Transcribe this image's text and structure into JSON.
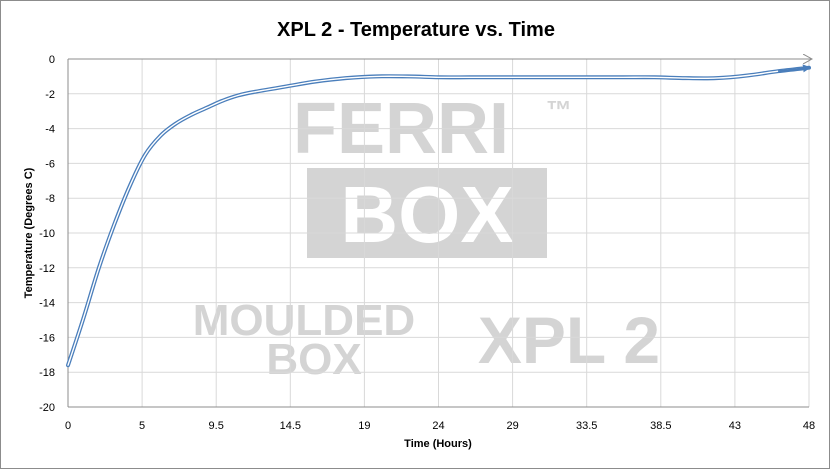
{
  "chart_data": {
    "type": "line",
    "title": "XPL 2 - Temperature vs. Time",
    "xlabel": "Time (Hours)",
    "ylabel": "Temperature (Degrees C)",
    "x_ticks": [
      "0",
      "5",
      "9.5",
      "14.5",
      "19",
      "24",
      "29",
      "33.5",
      "38.5",
      "43",
      "48"
    ],
    "y_ticks": [
      "0",
      "-2",
      "-4",
      "-6",
      "-8",
      "-10",
      "-12",
      "-14",
      "-16",
      "-18",
      "-20"
    ],
    "xlim": [
      0,
      48
    ],
    "ylim": [
      -20,
      0
    ],
    "grid": true,
    "line_color": "#4a7ebb",
    "series": [
      {
        "x": [
          0,
          1,
          2,
          3,
          4,
          5,
          6,
          7,
          8,
          9,
          10,
          11,
          12,
          14,
          16,
          18,
          20,
          22,
          24,
          26,
          28,
          30,
          32,
          34,
          36,
          38,
          40,
          42,
          44,
          46,
          48
        ],
        "y": [
          -17.6,
          -14.9,
          -12.0,
          -9.5,
          -7.3,
          -5.5,
          -4.4,
          -3.7,
          -3.2,
          -2.8,
          -2.4,
          -2.1,
          -1.9,
          -1.6,
          -1.3,
          -1.1,
          -1.0,
          -1.0,
          -1.05,
          -1.05,
          -1.05,
          -1.05,
          -1.05,
          -1.05,
          -1.05,
          -1.05,
          -1.1,
          -1.1,
          -0.95,
          -0.7,
          -0.5
        ]
      }
    ]
  },
  "watermark": {
    "ferri": "FERRI",
    "tm": "™",
    "box": "BOX",
    "moulded": "MOULDED",
    "box_small": "BOX",
    "model": "XPL 2"
  }
}
